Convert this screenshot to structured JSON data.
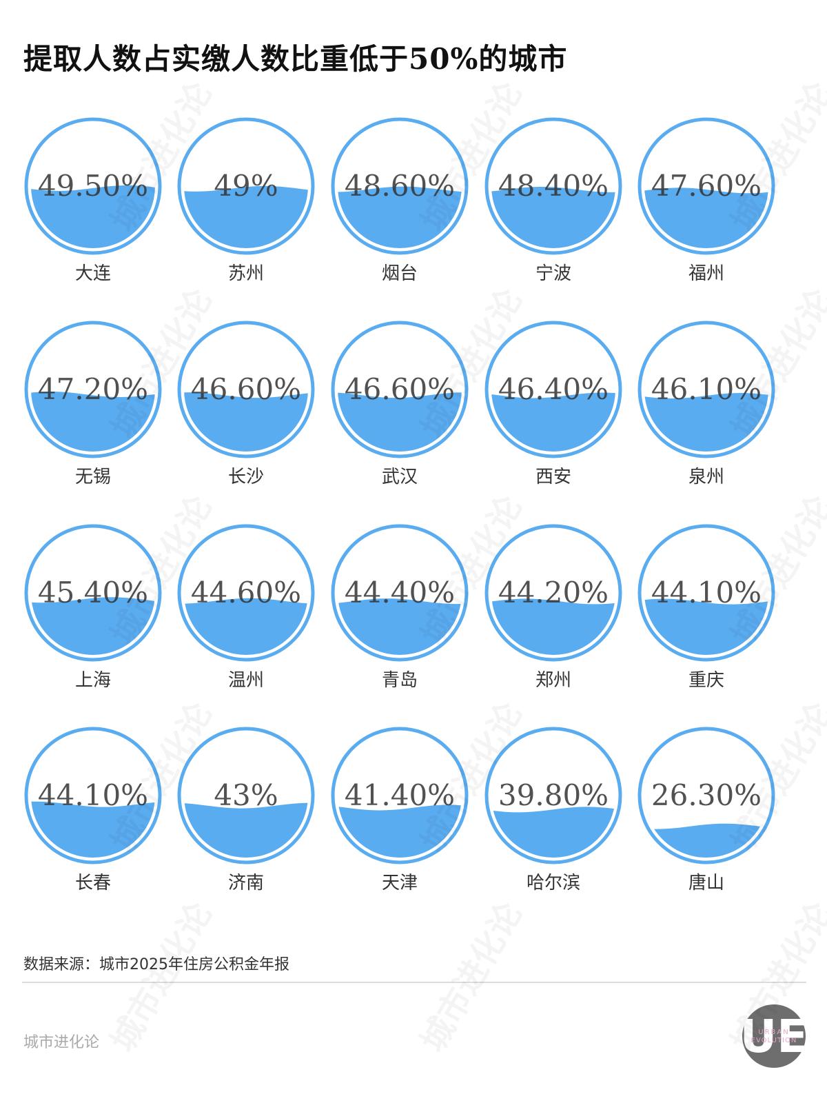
{
  "header": {
    "title": "提取人数占实缴人数比重低于50%的城市"
  },
  "footer": {
    "source": "数据来源：城市2025年住房公积金年报",
    "brand": "城市进化论",
    "logo_text": "UE",
    "logo_sub1": "URBAN",
    "logo_sub2": "EVOLUTION"
  },
  "watermark": {
    "text": "城市进化论"
  },
  "colors": {
    "water": "#5aacf0",
    "ring": "#5aacf0",
    "text": "#333333"
  },
  "chart_data": {
    "type": "liquid-fill gauges",
    "title": "提取人数占实缴人数比重低于50%的城市",
    "unit": "%",
    "categories": [
      "大连",
      "苏州",
      "烟台",
      "宁波",
      "福州",
      "无锡",
      "长沙",
      "武汉",
      "西安",
      "泉州",
      "上海",
      "温州",
      "青岛",
      "郑州",
      "重庆",
      "长春",
      "济南",
      "天津",
      "哈尔滨",
      "唐山"
    ],
    "values": [
      49.5,
      49,
      48.6,
      48.4,
      47.6,
      47.2,
      46.6,
      46.6,
      46.4,
      46.1,
      45.4,
      44.6,
      44.4,
      44.2,
      44.1,
      44.1,
      43,
      41.4,
      39.8,
      26.3
    ],
    "labels": [
      "49.50%",
      "49%",
      "48.60%",
      "48.40%",
      "47.60%",
      "47.20%",
      "46.60%",
      "46.60%",
      "46.40%",
      "46.10%",
      "45.40%",
      "44.60%",
      "44.40%",
      "44.20%",
      "44.10%",
      "44.10%",
      "43%",
      "41.40%",
      "39.80%",
      "26.30%"
    ],
    "source": "数据来源：城市2025年住房公积金年报"
  }
}
